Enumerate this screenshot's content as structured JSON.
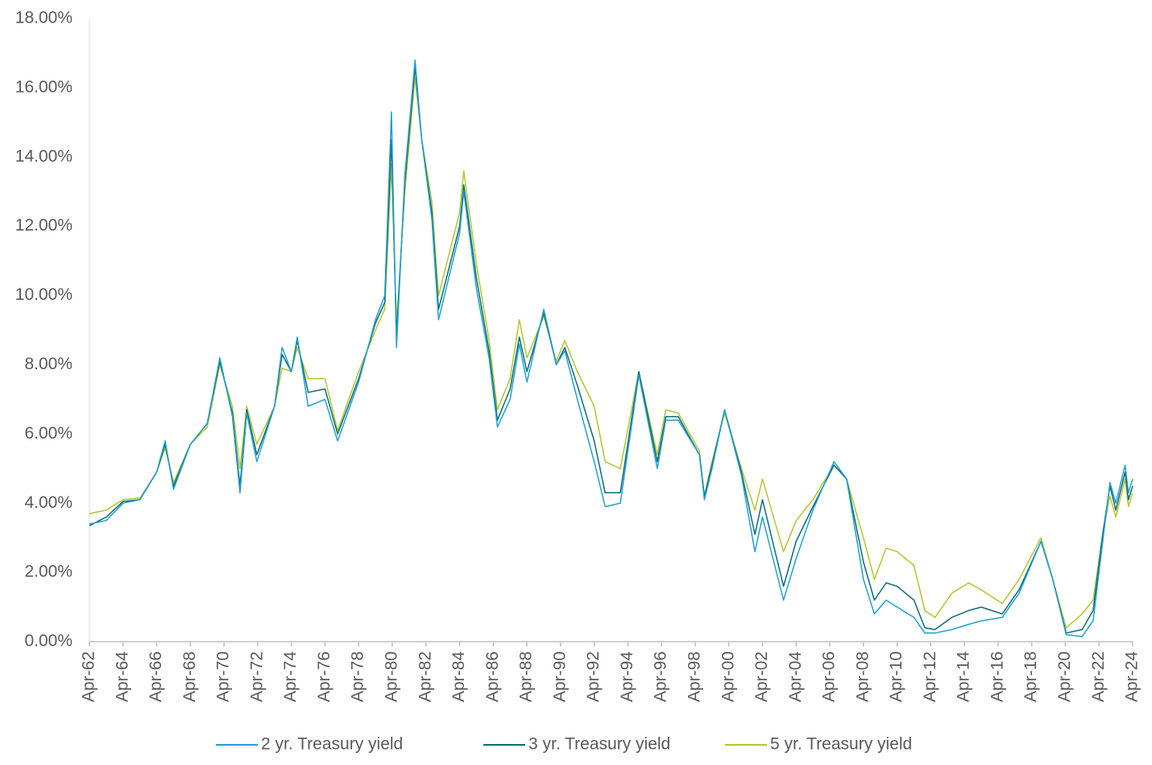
{
  "chart_data": {
    "type": "line",
    "x": [
      1962.25,
      1963.25,
      1964.25,
      1965.25,
      1966.25,
      1966.75,
      1967.25,
      1968.25,
      1969.25,
      1970.0,
      1970.75,
      1971.2,
      1971.6,
      1972.2,
      1973.25,
      1973.7,
      1974.25,
      1974.6,
      1975.25,
      1976.25,
      1977.0,
      1978.25,
      1979.25,
      1979.8,
      1980.2,
      1980.5,
      1981.0,
      1981.6,
      1982.0,
      1982.6,
      1983.0,
      1984.25,
      1984.5,
      1985.25,
      1986.0,
      1986.5,
      1987.25,
      1987.8,
      1988.25,
      1989.25,
      1990.0,
      1990.5,
      1991.25,
      1992.25,
      1992.9,
      1993.8,
      1994.9,
      1996.0,
      1996.5,
      1997.25,
      1998.5,
      1998.8,
      1999.25,
      2000.0,
      2001.0,
      2001.8,
      2002.25,
      2003.5,
      2004.25,
      2005.25,
      2006.5,
      2007.25,
      2008.25,
      2008.9,
      2009.6,
      2010.25,
      2011.25,
      2011.9,
      2012.5,
      2013.5,
      2014.5,
      2015.25,
      2016.5,
      2017.5,
      2018.8,
      2019.5,
      2020.3,
      2021.25,
      2021.9,
      2022.5,
      2022.9,
      2023.25,
      2023.8,
      2024.0,
      2024.25
    ],
    "series": [
      {
        "name": "2 yr. Treasury yield",
        "color": "#1e9fd6",
        "values": [
          3.4,
          3.5,
          4.0,
          4.1,
          4.9,
          5.8,
          4.4,
          5.7,
          6.3,
          8.2,
          6.5,
          4.3,
          6.6,
          5.2,
          6.8,
          8.5,
          7.8,
          8.8,
          6.8,
          7.0,
          5.8,
          7.5,
          9.3,
          10.0,
          15.3,
          8.5,
          13.5,
          16.8,
          14.5,
          12.2,
          9.3,
          11.8,
          13.0,
          10.2,
          8.2,
          6.2,
          7.0,
          8.6,
          7.5,
          9.6,
          8.0,
          8.4,
          7.0,
          5.2,
          3.9,
          4.0,
          7.7,
          5.0,
          6.4,
          6.4,
          5.4,
          4.1,
          5.0,
          6.7,
          4.8,
          2.6,
          3.6,
          1.2,
          2.4,
          3.8,
          5.2,
          4.7,
          1.8,
          0.8,
          1.2,
          1.0,
          0.7,
          0.25,
          0.25,
          0.35,
          0.5,
          0.6,
          0.7,
          1.4,
          2.9,
          1.8,
          0.2,
          0.15,
          0.6,
          3.0,
          4.6,
          4.0,
          5.1,
          4.3,
          4.7
        ]
      },
      {
        "name": "3 yr. Treasury yield",
        "color": "#0d6b74",
        "values": [
          3.35,
          3.6,
          4.05,
          4.1,
          4.9,
          5.7,
          4.5,
          5.7,
          6.3,
          8.1,
          6.6,
          4.5,
          6.7,
          5.4,
          6.8,
          8.3,
          7.8,
          8.7,
          7.2,
          7.3,
          6.0,
          7.6,
          9.2,
          9.8,
          14.5,
          8.8,
          13.3,
          16.6,
          14.5,
          12.4,
          9.6,
          12.0,
          13.2,
          10.5,
          8.4,
          6.4,
          7.3,
          8.8,
          7.8,
          9.5,
          8.0,
          8.5,
          7.4,
          5.8,
          4.3,
          4.3,
          7.8,
          5.2,
          6.5,
          6.5,
          5.4,
          4.2,
          5.1,
          6.7,
          4.9,
          3.1,
          4.1,
          1.6,
          2.9,
          3.9,
          5.1,
          4.7,
          2.3,
          1.2,
          1.7,
          1.6,
          1.2,
          0.4,
          0.35,
          0.7,
          0.9,
          1.0,
          0.8,
          1.5,
          2.9,
          1.8,
          0.25,
          0.35,
          0.9,
          3.2,
          4.5,
          3.8,
          4.9,
          4.1,
          4.5
        ]
      },
      {
        "name": "5 yr. Treasury yield",
        "color": "#b5c42f",
        "values": [
          3.7,
          3.8,
          4.1,
          4.15,
          4.9,
          5.6,
          4.6,
          5.7,
          6.2,
          8.0,
          6.8,
          5.0,
          6.8,
          5.7,
          6.8,
          7.9,
          7.8,
          8.5,
          7.6,
          7.6,
          6.1,
          7.8,
          9.0,
          9.6,
          13.8,
          9.2,
          13.0,
          16.3,
          14.5,
          12.7,
          10.0,
          12.4,
          13.6,
          10.9,
          8.7,
          6.7,
          7.6,
          9.3,
          8.2,
          9.4,
          8.1,
          8.7,
          7.8,
          6.8,
          5.2,
          5.0,
          7.8,
          5.4,
          6.7,
          6.6,
          5.5,
          4.2,
          5.2,
          6.6,
          5.0,
          3.8,
          4.7,
          2.6,
          3.5,
          4.1,
          5.1,
          4.7,
          3.0,
          1.8,
          2.7,
          2.6,
          2.2,
          0.9,
          0.7,
          1.4,
          1.7,
          1.5,
          1.1,
          1.8,
          3.0,
          1.8,
          0.4,
          0.8,
          1.2,
          3.2,
          4.2,
          3.6,
          4.7,
          3.9,
          4.3
        ]
      }
    ],
    "xlim": [
      1962.25,
      2024.25
    ],
    "xticks": [
      {
        "value": 1962.25,
        "label": "Apr-62"
      },
      {
        "value": 1964.25,
        "label": "Apr-64"
      },
      {
        "value": 1966.25,
        "label": "Apr-66"
      },
      {
        "value": 1968.25,
        "label": "Apr-68"
      },
      {
        "value": 1970.25,
        "label": "Apr-70"
      },
      {
        "value": 1972.25,
        "label": "Apr-72"
      },
      {
        "value": 1974.25,
        "label": "Apr-74"
      },
      {
        "value": 1976.25,
        "label": "Apr-76"
      },
      {
        "value": 1978.25,
        "label": "Apr-78"
      },
      {
        "value": 1980.25,
        "label": "Apr-80"
      },
      {
        "value": 1982.25,
        "label": "Apr-82"
      },
      {
        "value": 1984.25,
        "label": "Apr-84"
      },
      {
        "value": 1986.25,
        "label": "Apr-86"
      },
      {
        "value": 1988.25,
        "label": "Apr-88"
      },
      {
        "value": 1990.25,
        "label": "Apr-90"
      },
      {
        "value": 1992.25,
        "label": "Apr-92"
      },
      {
        "value": 1994.25,
        "label": "Apr-94"
      },
      {
        "value": 1996.25,
        "label": "Apr-96"
      },
      {
        "value": 1998.25,
        "label": "Apr-98"
      },
      {
        "value": 2000.25,
        "label": "Apr-00"
      },
      {
        "value": 2002.25,
        "label": "Apr-02"
      },
      {
        "value": 2004.25,
        "label": "Apr-04"
      },
      {
        "value": 2006.25,
        "label": "Apr-06"
      },
      {
        "value": 2008.25,
        "label": "Apr-08"
      },
      {
        "value": 2010.25,
        "label": "Apr-10"
      },
      {
        "value": 2012.25,
        "label": "Apr-12"
      },
      {
        "value": 2014.25,
        "label": "Apr-14"
      },
      {
        "value": 2016.25,
        "label": "Apr-16"
      },
      {
        "value": 2018.25,
        "label": "Apr-18"
      },
      {
        "value": 2020.25,
        "label": "Apr-20"
      },
      {
        "value": 2022.25,
        "label": "Apr-22"
      },
      {
        "value": 2024.25,
        "label": "Apr-24"
      }
    ],
    "ylim": [
      0,
      18
    ],
    "yticks": [
      {
        "value": 0,
        "label": "0.00%"
      },
      {
        "value": 2,
        "label": "2.00%"
      },
      {
        "value": 4,
        "label": "4.00%"
      },
      {
        "value": 6,
        "label": "6.00%"
      },
      {
        "value": 8,
        "label": "8.00%"
      },
      {
        "value": 10,
        "label": "10.00%"
      },
      {
        "value": 12,
        "label": "12.00%"
      },
      {
        "value": 14,
        "label": "14.00%"
      },
      {
        "value": 16,
        "label": "16.00%"
      },
      {
        "value": 18,
        "label": "18.00%"
      }
    ],
    "grid": false,
    "legend": "bottom"
  }
}
